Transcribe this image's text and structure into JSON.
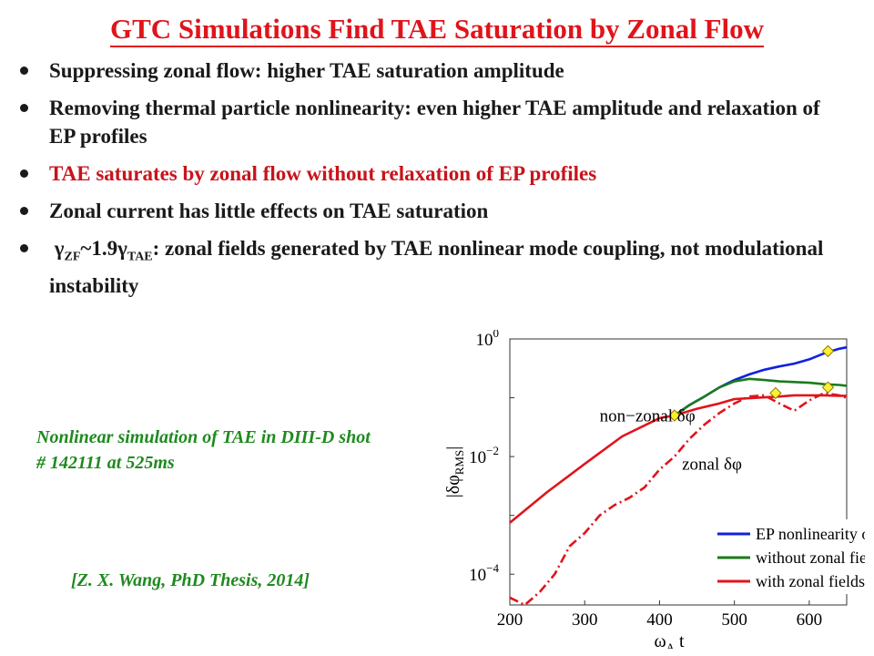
{
  "slide": {
    "title": "GTC Simulations Find TAE Saturation by Zonal Flow",
    "bullets": [
      "Suppressing zonal flow: higher TAE saturation amplitude",
      "Removing thermal particle nonlinearity: even higher TAE amplitude and relaxation of EP profiles",
      "TAE saturates by zonal flow without relaxation of EP profiles",
      "Zonal current has little effects on TAE saturation"
    ],
    "bullet5": {
      "gamma_zf": "γ",
      "sub_zf": "ZF",
      "middle": "~1.9γ",
      "sub_tae": "TAE",
      "rest": ": zonal fields generated by TAE nonlinear mode coupling, not modulational instability"
    },
    "caption_simulation": "Nonlinear simulation of TAE in DIII-D shot # 142111 at 525ms",
    "caption_reference": "[Z. X. Wang, PhD Thesis, 2014]"
  },
  "chart_data": {
    "type": "line",
    "xlabel": "ω_A t",
    "ylabel": "|δφ_RMS|",
    "x_scale": "linear",
    "y_scale": "log",
    "xlim": [
      200,
      650
    ],
    "ylim": [
      3e-05,
      1
    ],
    "x_ticks": [
      200,
      300,
      400,
      500,
      600
    ],
    "y_ticks": [
      {
        "value": 1,
        "base": "10",
        "exp": "0"
      },
      {
        "value": 0.01,
        "base": "10",
        "exp": "−2"
      },
      {
        "value": 0.0001,
        "base": "10",
        "exp": "−4"
      }
    ],
    "legend": {
      "placement": "bottom-right",
      "entries": [
        {
          "label": "EP nonlinearity only",
          "color": "#1020e0"
        },
        {
          "label": "without zonal fields",
          "color": "#1b7a1b"
        },
        {
          "label": "with zonal fields",
          "color": "#e0141b"
        }
      ]
    },
    "annotations": [
      {
        "text": "non−zonal δφ",
        "x": 320,
        "y": 0.04
      },
      {
        "text": "zonal δφ",
        "x": 430,
        "y": 0.006
      }
    ],
    "series": [
      {
        "name": "EP nonlinearity only",
        "color": "#1020e0",
        "style": "solid",
        "x": [
          420,
          440,
          460,
          480,
          500,
          520,
          540,
          560,
          580,
          600,
          620,
          640,
          650
        ],
        "y": [
          0.05,
          0.075,
          0.105,
          0.15,
          0.2,
          0.25,
          0.3,
          0.34,
          0.38,
          0.45,
          0.57,
          0.68,
          0.72
        ]
      },
      {
        "name": "without zonal fields",
        "color": "#1b7a1b",
        "style": "solid",
        "x": [
          420,
          440,
          460,
          480,
          500,
          520,
          540,
          560,
          580,
          600,
          620,
          640,
          650
        ],
        "y": [
          0.05,
          0.075,
          0.105,
          0.15,
          0.19,
          0.21,
          0.2,
          0.19,
          0.185,
          0.18,
          0.17,
          0.165,
          0.16
        ]
      },
      {
        "name": "with zonal fields",
        "color": "#e0141b",
        "style": "solid",
        "x": [
          200,
          250,
          300,
          350,
          400,
          420,
          450,
          480,
          500,
          530,
          560,
          580,
          600,
          620,
          640,
          650
        ],
        "y": [
          0.00075,
          0.0025,
          0.0075,
          0.022,
          0.045,
          0.05,
          0.065,
          0.08,
          0.095,
          0.1,
          0.105,
          0.11,
          0.11,
          0.11,
          0.108,
          0.108
        ]
      },
      {
        "name": "zonal δφ",
        "color": "#e0141b",
        "style": "dashdot",
        "x": [
          200,
          220,
          240,
          260,
          280,
          300,
          320,
          340,
          360,
          380,
          400,
          420,
          440,
          460,
          480,
          500,
          520,
          540,
          560,
          580,
          600,
          620,
          640,
          650
        ],
        "y": [
          4e-05,
          3e-05,
          5e-05,
          0.0001,
          0.0003,
          0.0005,
          0.001,
          0.0015,
          0.002,
          0.003,
          0.006,
          0.01,
          0.02,
          0.035,
          0.055,
          0.08,
          0.105,
          0.11,
          0.08,
          0.06,
          0.09,
          0.12,
          0.11,
          0.1
        ]
      }
    ],
    "markers": [
      {
        "x": 420,
        "y": 0.05
      },
      {
        "x": 555,
        "y": 0.12
      },
      {
        "x": 625,
        "y": 0.15
      },
      {
        "x": 625,
        "y": 0.62
      }
    ],
    "marker_color": "#ffee33"
  }
}
